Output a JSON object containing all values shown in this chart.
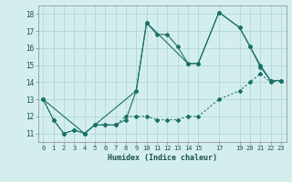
{
  "title": "",
  "xlabel": "Humidex (Indice chaleur)",
  "bg_color": "#d4eeee",
  "grid_color": "#b0d8d8",
  "line_color": "#1a7068",
  "xlim": [
    -0.5,
    23.5
  ],
  "ylim": [
    10.5,
    18.5
  ],
  "xticks": [
    0,
    1,
    2,
    3,
    4,
    5,
    6,
    7,
    8,
    9,
    10,
    11,
    12,
    13,
    14,
    15,
    17,
    19,
    20,
    21,
    22,
    23
  ],
  "yticks": [
    11,
    12,
    13,
    14,
    15,
    16,
    17,
    18
  ],
  "line1_x": [
    0,
    1,
    2,
    3,
    4,
    5,
    6,
    7,
    8,
    9,
    10,
    11,
    12,
    13,
    14,
    15,
    17,
    19,
    20,
    21,
    22,
    23
  ],
  "line1_y": [
    13,
    11.8,
    11,
    11.2,
    11,
    11.5,
    11.5,
    11.5,
    11.8,
    13.5,
    17.5,
    16.8,
    16.8,
    16.1,
    15.1,
    15.1,
    18.1,
    17.2,
    16.1,
    15.0,
    14.1,
    14.1
  ],
  "line2_x": [
    0,
    1,
    2,
    3,
    4,
    5,
    6,
    7,
    8,
    9,
    10,
    11,
    12,
    13,
    14,
    15,
    17,
    19,
    20,
    21,
    22,
    23
  ],
  "line2_y": [
    13,
    11.8,
    11,
    11.2,
    11,
    11.5,
    11.5,
    11.5,
    12.0,
    12.0,
    12.0,
    11.8,
    11.8,
    11.8,
    12.0,
    12.0,
    13.0,
    13.5,
    14.0,
    14.5,
    14.0,
    14.1
  ],
  "line3_x": [
    0,
    4,
    9,
    10,
    14,
    15,
    17,
    19,
    20,
    21,
    22,
    23
  ],
  "line3_y": [
    13,
    11,
    13.5,
    17.5,
    15.1,
    15.1,
    18.1,
    17.2,
    16.1,
    14.9,
    14.1,
    14.1
  ]
}
